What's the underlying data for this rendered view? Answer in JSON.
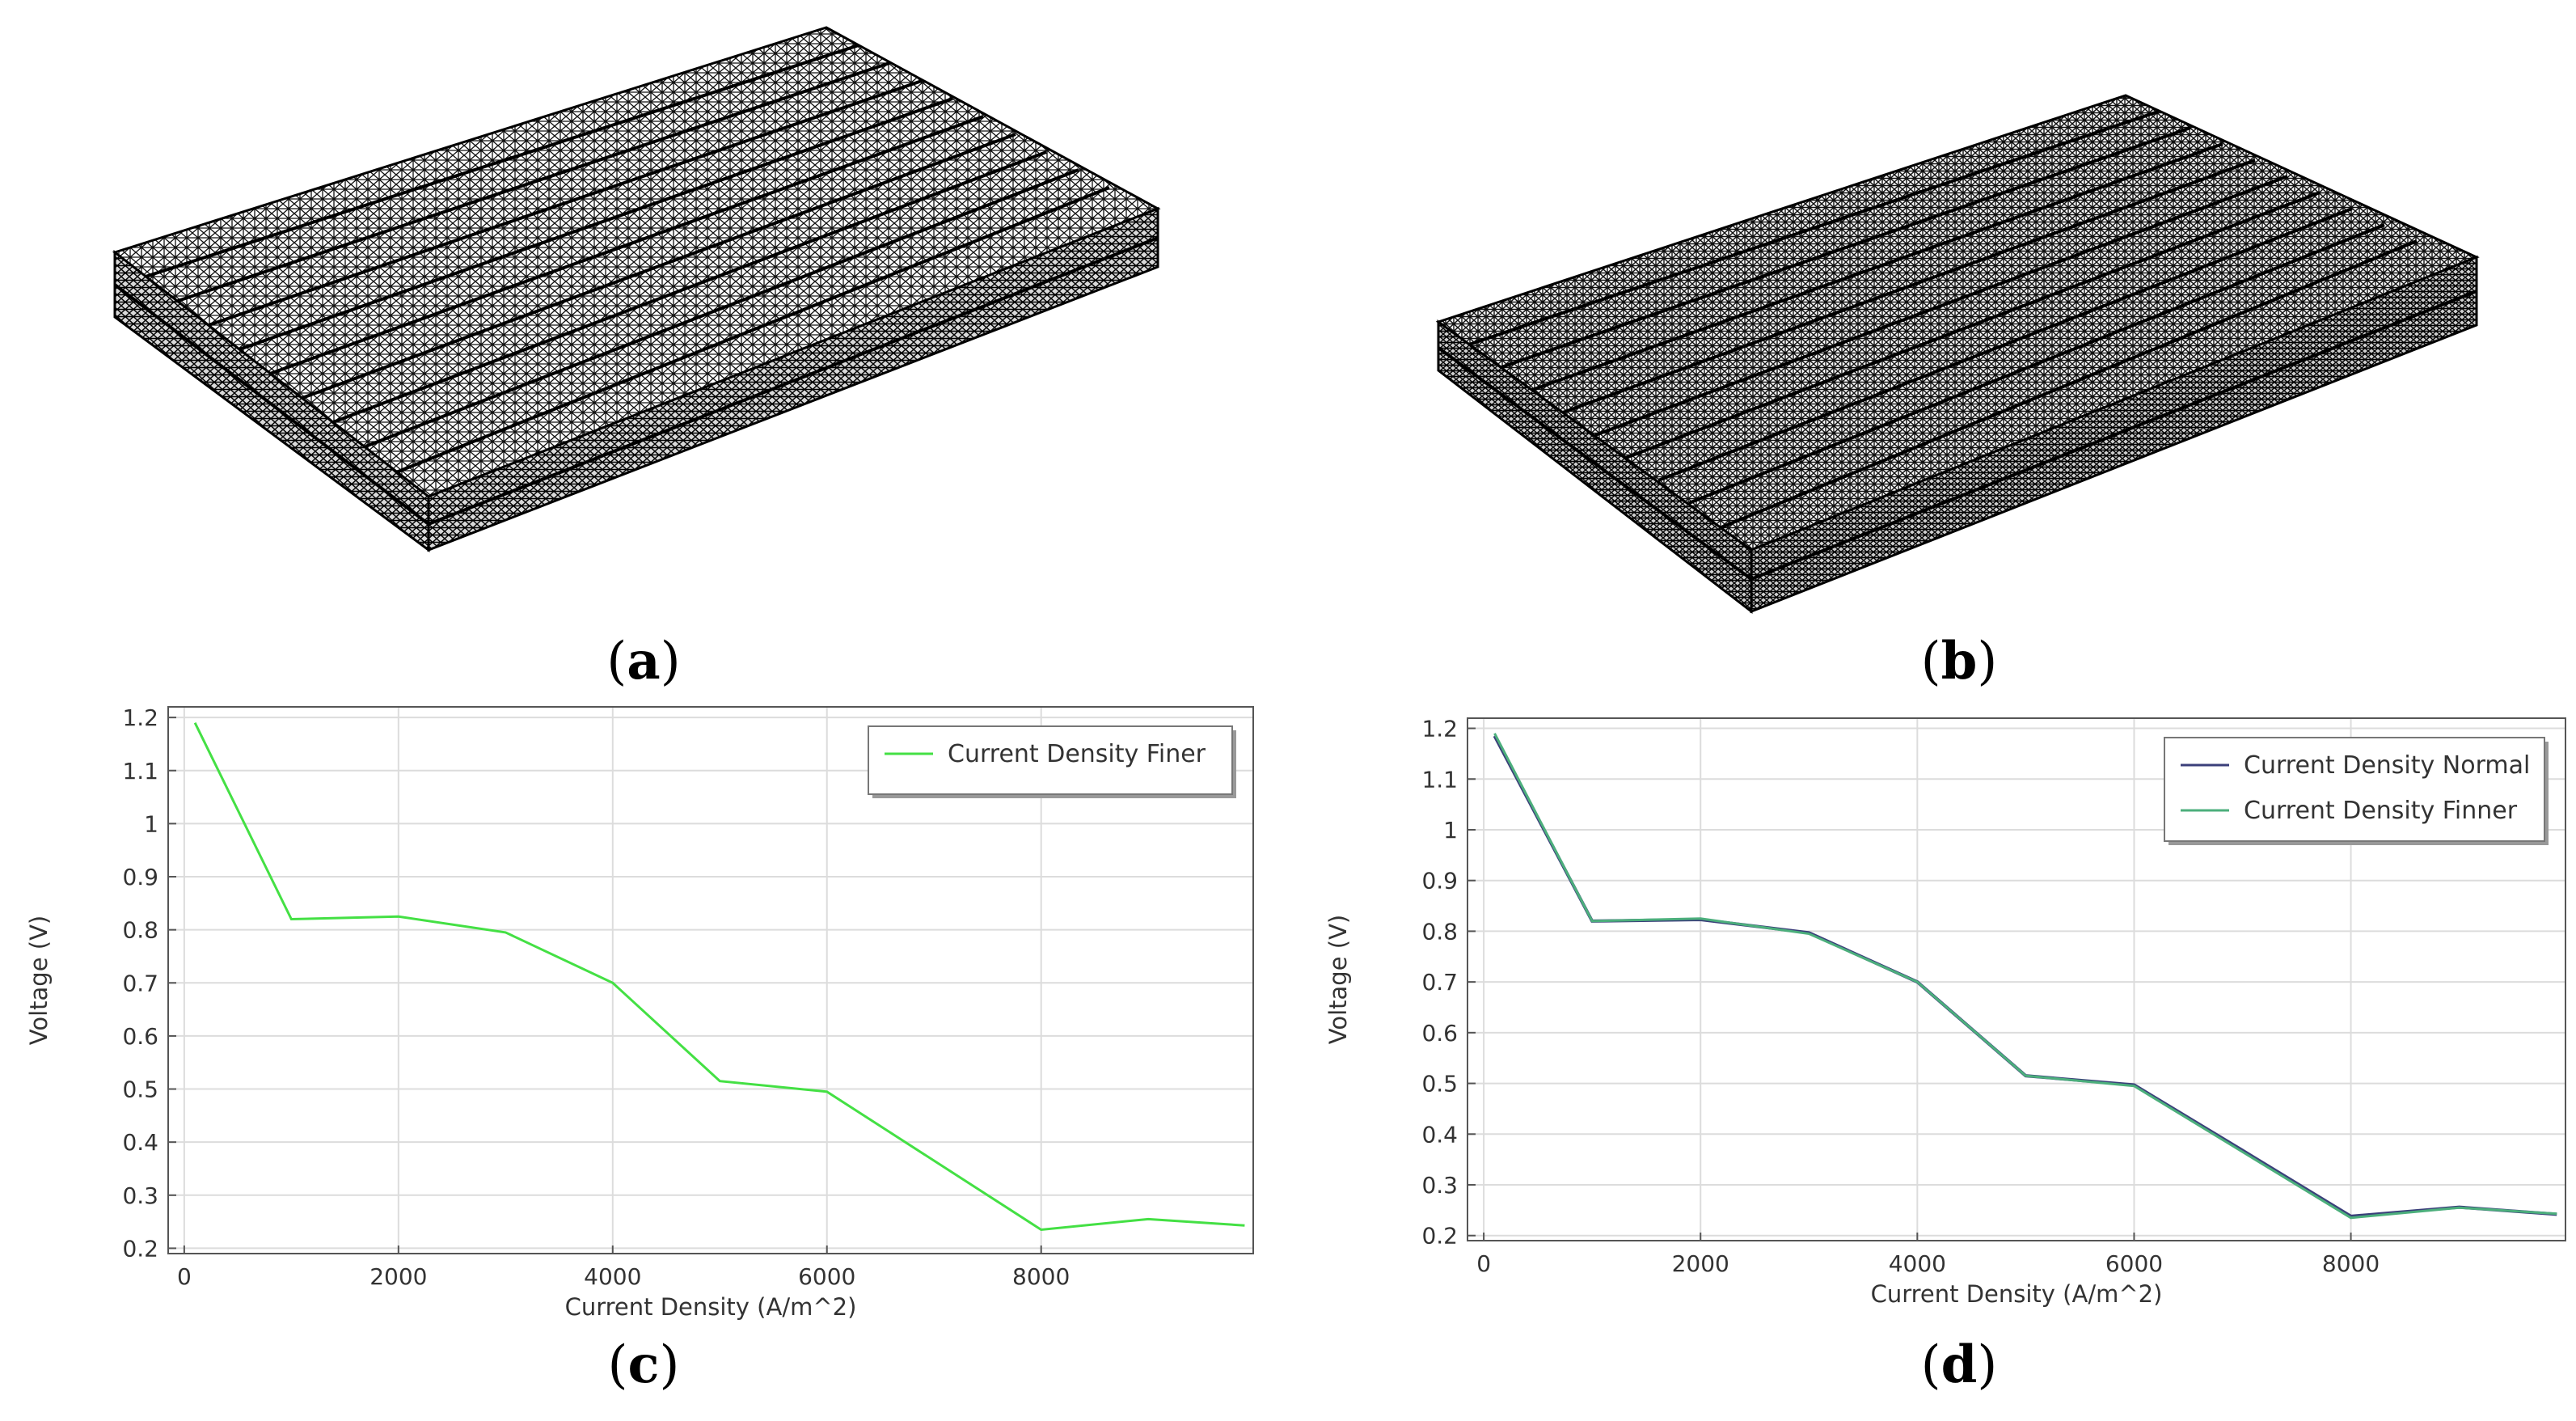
{
  "panels": {
    "a": {
      "caption": "a"
    },
    "b": {
      "caption": "b"
    },
    "c": {
      "caption": "c"
    },
    "d": {
      "caption": "d"
    }
  },
  "chart_data": [
    {
      "type": "line",
      "panel": "c",
      "xlabel": "Current Density (A/m^2)",
      "ylabel": "Voltage (V)",
      "xlim": [
        -150,
        9980
      ],
      "ylim": [
        0.19,
        1.22
      ],
      "xticks": [
        0,
        2000,
        4000,
        6000,
        8000
      ],
      "yticks": [
        0.2,
        0.3,
        0.4,
        0.5,
        0.6,
        0.7,
        0.8,
        0.9,
        1,
        1.1,
        1.2
      ],
      "grid": true,
      "legend_position": "top-right",
      "series": [
        {
          "name": "Current Density Finer",
          "color": "#44e044",
          "x": [
            100,
            1000,
            2000,
            3000,
            4000,
            5000,
            6000,
            7000,
            8000,
            9000,
            9900
          ],
          "y": [
            1.19,
            0.82,
            0.825,
            0.795,
            0.7,
            0.515,
            0.495,
            0.365,
            0.235,
            0.255,
            0.243
          ]
        }
      ]
    },
    {
      "type": "line",
      "panel": "d",
      "xlabel": "Current Density (A/m^2)",
      "ylabel": "Voltage (V)",
      "xlim": [
        -150,
        9980
      ],
      "ylim": [
        0.19,
        1.22
      ],
      "xticks": [
        0,
        2000,
        4000,
        6000,
        8000
      ],
      "yticks": [
        0.2,
        0.3,
        0.4,
        0.5,
        0.6,
        0.7,
        0.8,
        0.9,
        1,
        1.1,
        1.2
      ],
      "grid": true,
      "legend_position": "top-right",
      "series": [
        {
          "name": "Current Density Normal",
          "color": "#3b3f7a",
          "x": [
            100,
            1000,
            2000,
            3000,
            4000,
            5000,
            6000,
            7000,
            8000,
            9000,
            9900
          ],
          "y": [
            1.185,
            0.82,
            0.823,
            0.797,
            0.7,
            0.515,
            0.497,
            0.368,
            0.238,
            0.256,
            0.242
          ]
        },
        {
          "name": "Current Density Finner",
          "color": "#4caf7c",
          "x": [
            100,
            1000,
            2000,
            3000,
            4000,
            5000,
            6000,
            7000,
            8000,
            9000,
            9900
          ],
          "y": [
            1.19,
            0.82,
            0.825,
            0.795,
            0.7,
            0.515,
            0.495,
            0.365,
            0.235,
            0.255,
            0.243
          ]
        }
      ]
    }
  ]
}
